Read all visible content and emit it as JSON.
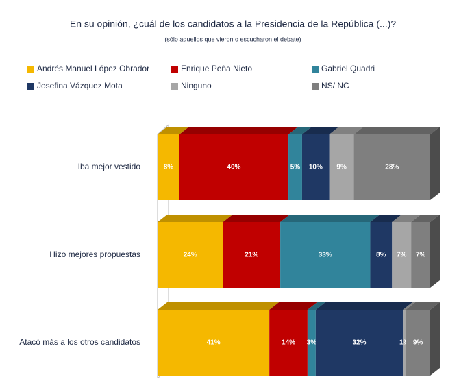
{
  "chart_data": {
    "type": "stacked-bar-3d",
    "title": "En su opinión, ¿cuál de los candidatos a la Presidencia de la República (...)?",
    "subtitle": "(sólo aquellos que vieron o escucharon el debate)",
    "categories": [
      "Iba mejor vestido",
      "Hizo mejores propuestas",
      "Atacó más a los otros candidatos"
    ],
    "series": [
      {
        "name": "Andrés Manuel López Obrador",
        "color": "#f5b800",
        "values": [
          8,
          24,
          41
        ],
        "value_labels": [
          "8%",
          "24%",
          "41%"
        ]
      },
      {
        "name": "Enrique Peña Nieto",
        "color": "#c00000",
        "values": [
          40,
          21,
          14
        ],
        "value_labels": [
          "40%",
          "21%",
          "14%"
        ]
      },
      {
        "name": "Gabriel Quadri",
        "color": "#31849b",
        "values": [
          5,
          33,
          3
        ],
        "value_labels": [
          "5%",
          "33%",
          "3%"
        ]
      },
      {
        "name": "Josefina Vázquez Mota",
        "color": "#1f3864",
        "values": [
          10,
          8,
          32
        ],
        "value_labels": [
          "10%",
          "8%",
          "32%"
        ]
      },
      {
        "name": "Ninguno",
        "color": "#a6a6a6",
        "values": [
          9,
          7,
          1
        ],
        "value_labels": [
          "9%",
          "7%",
          "1%"
        ]
      },
      {
        "name": "NS/ NC",
        "color": "#7f7f7f",
        "values": [
          28,
          7,
          9
        ],
        "value_labels": [
          "28%",
          "7%",
          "9%"
        ]
      }
    ]
  }
}
